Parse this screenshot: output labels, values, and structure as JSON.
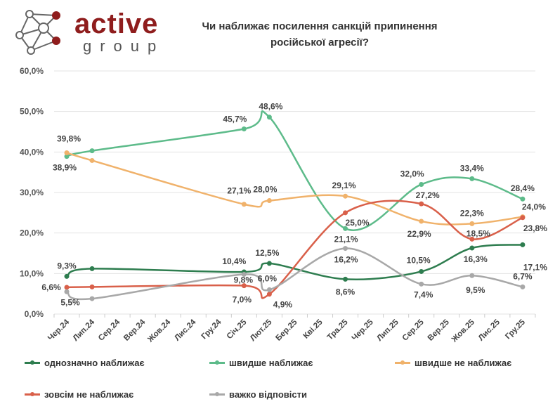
{
  "logo": {
    "word1": "active",
    "word2": "group"
  },
  "title": [
    "Чи наближає посилення санкцій припинення",
    "російської агресії?"
  ],
  "chart_data": {
    "type": "line",
    "title": "Чи наближає посилення санкцій припинення російської агресії?",
    "xlabel": "",
    "ylabel": "",
    "ylim": [
      0,
      60
    ],
    "yticks": [
      "0,0%",
      "10,0%",
      "20,0%",
      "30,0%",
      "40,0%",
      "50,0%",
      "60,0%"
    ],
    "ytick_values": [
      0,
      10,
      20,
      30,
      40,
      50,
      60
    ],
    "grid": true,
    "legend": "bottom",
    "categories": [
      "Чер.24",
      "Лип.24",
      "Сер.24",
      "Вер.24",
      "Жов.24",
      "Лис.24",
      "Гру.24",
      "Січ.25",
      "Лют.25",
      "Бер.25",
      "Кві.25",
      "Тра.25",
      "Чер.25",
      "Лип.25",
      "Сер.25",
      "Вер.25",
      "Жов.25",
      "Лис.25",
      "Гру.25"
    ],
    "series": [
      {
        "name": "однозначно наближає",
        "color": "#2e7d4f",
        "values": [
          9.3,
          11.2,
          null,
          null,
          null,
          null,
          null,
          10.4,
          12.5,
          null,
          null,
          8.6,
          null,
          null,
          10.5,
          null,
          16.3,
          null,
          17.1
        ],
        "labels": [
          "9,3%",
          "",
          null,
          null,
          null,
          null,
          null,
          "10,4%",
          "12,5%",
          null,
          null,
          "8,6%",
          null,
          null,
          "10,5%",
          null,
          "16,3%",
          null,
          "17,1%"
        ]
      },
      {
        "name": "швидше наближає",
        "color": "#5dbb8a",
        "values": [
          38.9,
          40.3,
          null,
          null,
          null,
          null,
          null,
          45.7,
          48.6,
          null,
          null,
          21.1,
          null,
          null,
          32.0,
          null,
          33.4,
          null,
          28.4
        ],
        "labels": [
          "38,9%",
          "",
          null,
          null,
          null,
          null,
          null,
          "45,7%",
          "48,6%",
          null,
          null,
          "21,1%",
          null,
          null,
          "32,0%",
          null,
          "33,4%",
          null,
          "28,4%"
        ]
      },
      {
        "name": "швидше не наближає",
        "color": "#f0b26b",
        "values": [
          39.8,
          37.9,
          null,
          null,
          null,
          null,
          null,
          27.1,
          28.0,
          null,
          null,
          29.1,
          null,
          null,
          22.9,
          null,
          22.3,
          null,
          24.0
        ],
        "labels": [
          "39,8%",
          "",
          null,
          null,
          null,
          null,
          null,
          "27,1%",
          "28,0%",
          null,
          null,
          "29,1%",
          null,
          null,
          "22,9%",
          null,
          "22,3%",
          null,
          "24,0%"
        ]
      },
      {
        "name": "зовсім не наближає",
        "color": "#d9604a",
        "values": [
          6.6,
          6.7,
          null,
          null,
          null,
          null,
          null,
          7.0,
          4.9,
          null,
          null,
          25.0,
          null,
          null,
          27.2,
          null,
          18.5,
          null,
          23.8
        ],
        "labels": [
          "6,6%",
          "",
          null,
          null,
          null,
          null,
          null,
          "7,0%",
          "4,9%",
          null,
          null,
          "25,0%",
          null,
          null,
          "27,2%",
          null,
          "18,5%",
          null,
          "23,8%"
        ]
      },
      {
        "name": "важко відповісти",
        "color": "#a8a8a8",
        "values": [
          5.5,
          3.8,
          null,
          null,
          null,
          null,
          null,
          9.8,
          6.0,
          null,
          null,
          16.2,
          null,
          null,
          7.4,
          null,
          9.5,
          null,
          6.7
        ],
        "labels": [
          "5,5%",
          "",
          null,
          null,
          null,
          null,
          null,
          "9,8%",
          "6,0%",
          null,
          null,
          "16,2%",
          null,
          null,
          "7,4%",
          null,
          "9,5%",
          null,
          "6,7%"
        ]
      }
    ]
  }
}
